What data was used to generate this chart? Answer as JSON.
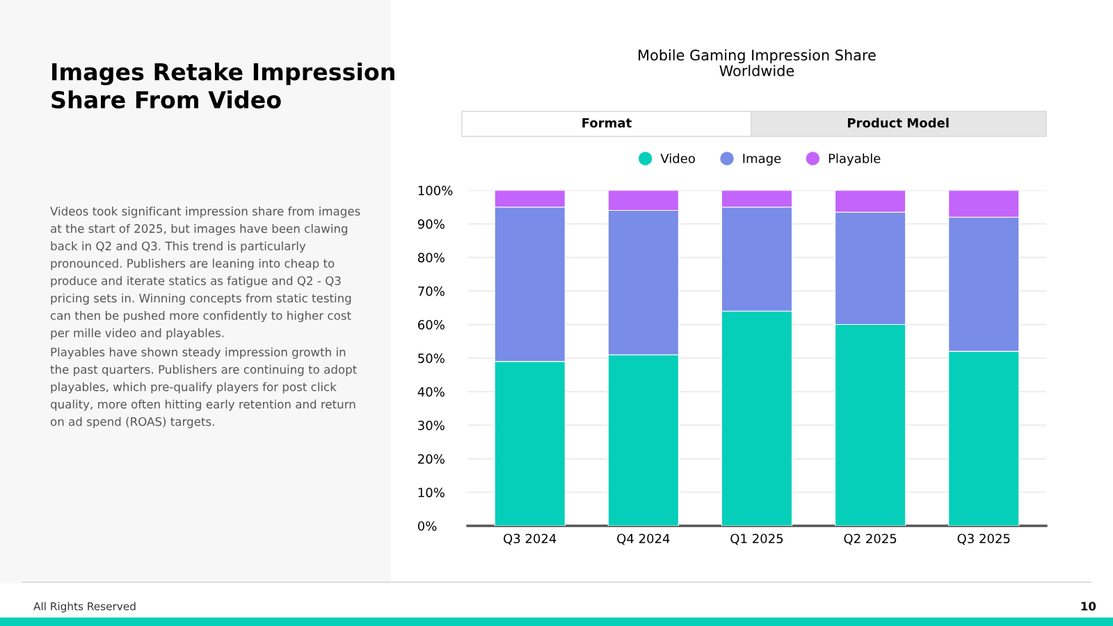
{
  "chart_data": {
    "type": "bar",
    "title": "Mobile Gaming Impression Share",
    "subtitle": "Worldwide",
    "categories": [
      "Q3 2024",
      "Q4 2024",
      "Q1 2025",
      "Q2 2025",
      "Q3 2025"
    ],
    "stacked": true,
    "series": [
      {
        "name": "Video",
        "color": "#05cfb9",
        "values": [
          49,
          51,
          64,
          60,
          52
        ]
      },
      {
        "name": "Image",
        "color": "#788ce8",
        "values": [
          46,
          43,
          31,
          33.5,
          40
        ]
      },
      {
        "name": "Playable",
        "color": "#c364fa",
        "values": [
          5,
          6,
          5,
          6.5,
          8
        ]
      }
    ],
    "ylim": [
      0,
      100
    ],
    "yticks": [
      {
        "value": 0,
        "label": "0%"
      },
      {
        "value": 10,
        "label": "10%"
      },
      {
        "value": 20,
        "label": "20%"
      },
      {
        "value": 30,
        "label": "30%"
      },
      {
        "value": 40,
        "label": "40%"
      },
      {
        "value": 50,
        "label": "50%"
      },
      {
        "value": 60,
        "label": "60%"
      },
      {
        "value": 70,
        "label": "70%"
      },
      {
        "value": 80,
        "label": "80%"
      },
      {
        "value": 90,
        "label": "90%"
      },
      {
        "value": 100,
        "label": "100%"
      }
    ],
    "grid": "y",
    "legend": "top",
    "annotations": [
      "Images Retake Impression Share From Video",
      "Videos took significant impression share from images at the start of 2025, but images have been clawing back in Q2 and Q3. This trend is particularly pronounced. Publishers are leaning into cheap to produce and iterate statics as fatigue and Q2 - Q3 pricing sets in. Winning concepts from static testing can then be pushed more confidently to higher cost per mille video and playables.",
      "Playables have shown steady impression growth in the past quarters. Publishers are continuing to adopt playables, which pre-qualify players for post click quality, more often hitting early retention and return on ad spend (ROAS) targets.",
      "Format",
      "Product Model",
      "All Rights Reserved",
      "10"
    ]
  }
}
